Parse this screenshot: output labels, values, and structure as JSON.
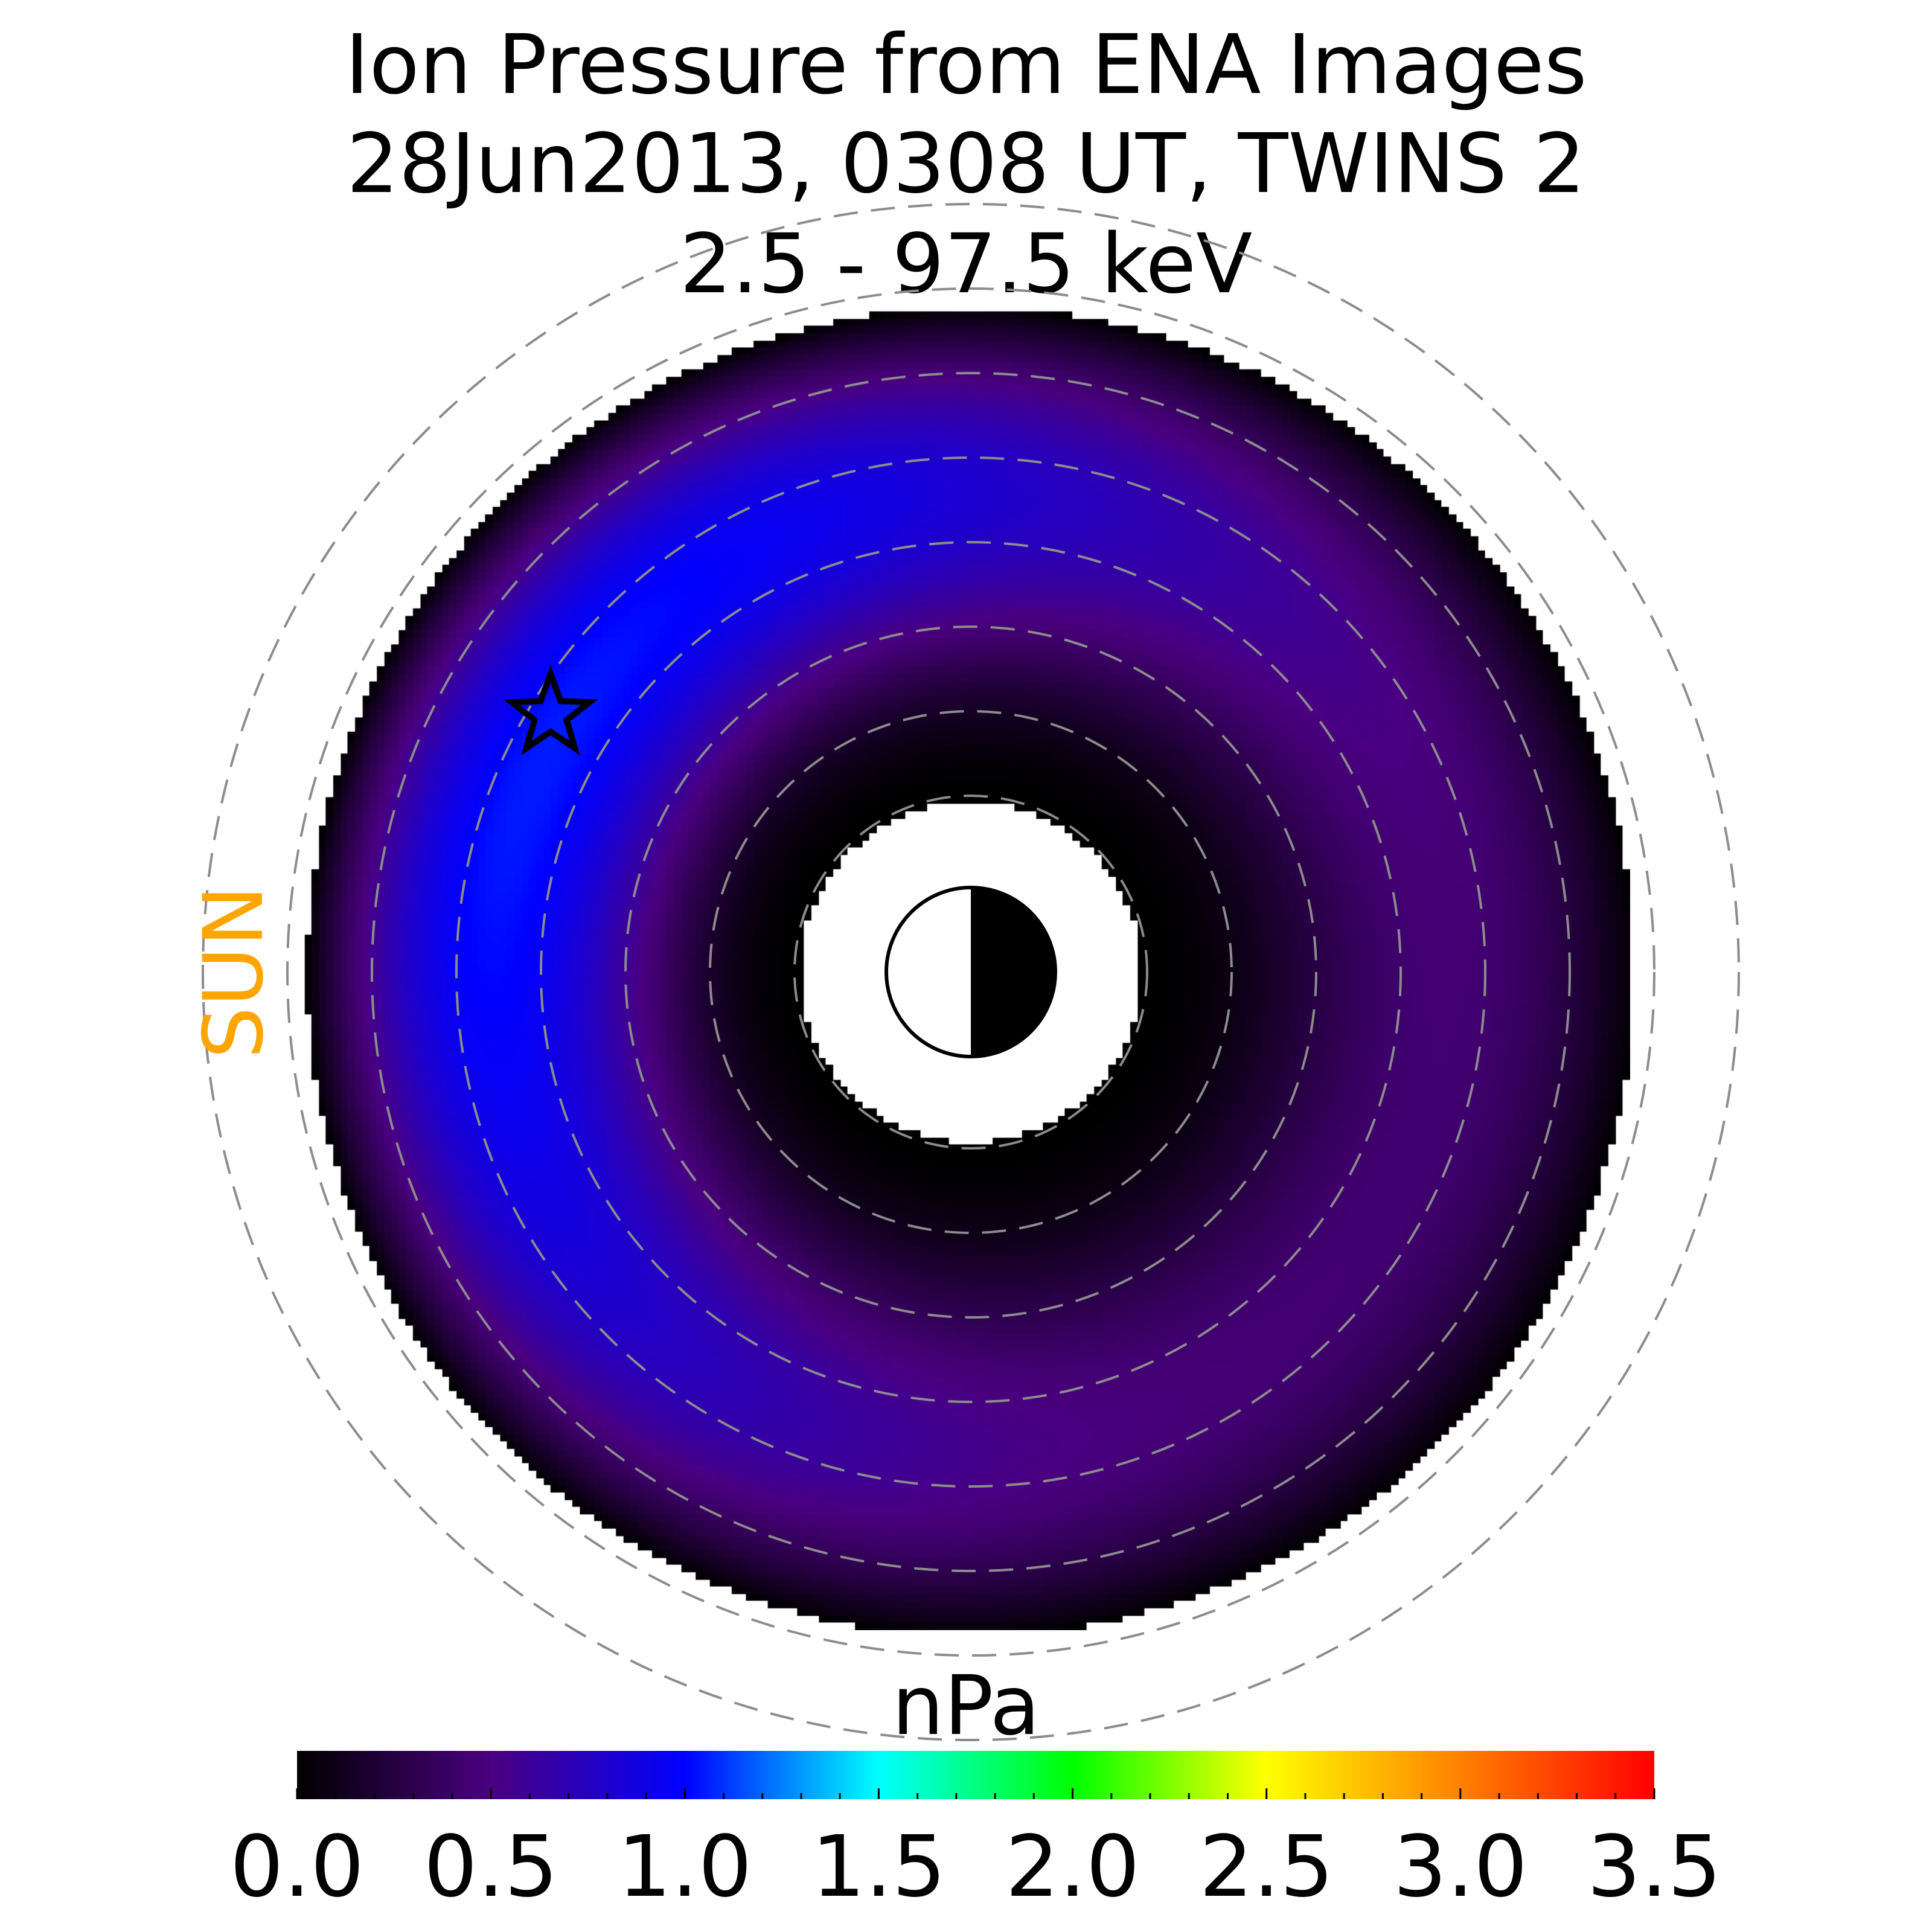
{
  "chart_data": {
    "type": "heatmap",
    "projection": "polar",
    "title_lines": [
      "Ion Pressure from  ENA Images",
      "28Jun2013, 0308 UT,  TWINS 2",
      "2.5 - 97.5 keV"
    ],
    "sun_label": "SUN",
    "colorbar": {
      "label": "nPa",
      "range": [
        0.0,
        3.5
      ],
      "ticks": [
        "0.0",
        "0.5",
        "1.0",
        "1.5",
        "2.0",
        "2.5",
        "3.0",
        "3.5"
      ],
      "colormap_stops": [
        {
          "value": 0.0,
          "color": "#000000"
        },
        {
          "value": 0.5,
          "color": "#4a0080"
        },
        {
          "value": 1.0,
          "color": "#0000ff"
        },
        {
          "value": 1.5,
          "color": "#00ffff"
        },
        {
          "value": 2.0,
          "color": "#00ff00"
        },
        {
          "value": 2.5,
          "color": "#ffff00"
        },
        {
          "value": 3.0,
          "color": "#ff8000"
        },
        {
          "value": 3.5,
          "color": "#ff0000"
        }
      ]
    },
    "pressure_pattern": {
      "peak_value_nPa": 1.05,
      "peak_direction": "dusk-side, sunward (upper left)",
      "inner_boundary_value_nPa": 0.0,
      "outer_boundary_value_nPa": 0.0
    },
    "grid": {
      "dashed_circles": true,
      "count": 8
    },
    "markers": [
      "star",
      "earth-symbol"
    ],
    "colors": {
      "sun_label": "#FFA500",
      "grid": "#8c8c8c",
      "background": "#ffffff"
    }
  }
}
